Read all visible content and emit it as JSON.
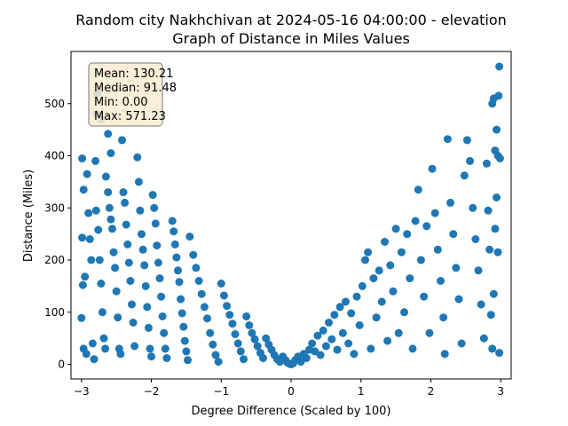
{
  "chart_data": {
    "type": "scatter",
    "title_line1": "Random city Nakhchivan at 2024-05-16 04:00:00  - elevation",
    "title_line2": "Graph of Distance in Miles Values",
    "xlabel": "Degree Difference (Scaled by 100)",
    "ylabel": "Distance (Miles)",
    "xlim": [
      -3.15,
      3.15
    ],
    "ylim": [
      -28,
      600
    ],
    "x_ticks": [
      -3,
      -2,
      -1,
      0,
      1,
      2,
      3
    ],
    "y_ticks": [
      0,
      100,
      200,
      300,
      400,
      500
    ],
    "grid": false,
    "color": "#1f77b4",
    "stats": {
      "mean": "Mean: 130.21",
      "median": "Median: 91.48",
      "min": "Min: 0.00",
      "max": "Max: 571.23"
    },
    "points": [
      [
        -2.99,
        395
      ],
      [
        -2.97,
        335
      ],
      [
        -2.99,
        243
      ],
      [
        -2.95,
        168
      ],
      [
        -2.98,
        152
      ],
      [
        -3.0,
        89
      ],
      [
        -2.97,
        30
      ],
      [
        -2.93,
        20
      ],
      [
        -2.92,
        365
      ],
      [
        -2.9,
        290
      ],
      [
        -2.88,
        240
      ],
      [
        -2.86,
        200
      ],
      [
        -2.84,
        40
      ],
      [
        -2.82,
        10
      ],
      [
        -2.8,
        390
      ],
      [
        -2.78,
        480
      ],
      [
        -2.77,
        520
      ],
      [
        -2.79,
        295
      ],
      [
        -2.76,
        258
      ],
      [
        -2.74,
        200
      ],
      [
        -2.72,
        155
      ],
      [
        -2.7,
        100
      ],
      [
        -2.68,
        50
      ],
      [
        -2.66,
        30
      ],
      [
        -2.72,
        470
      ],
      [
        -2.65,
        360
      ],
      [
        -2.62,
        330
      ],
      [
        -2.6,
        300
      ],
      [
        -2.58,
        278
      ],
      [
        -2.56,
        260
      ],
      [
        -2.54,
        215
      ],
      [
        -2.52,
        185
      ],
      [
        -2.5,
        140
      ],
      [
        -2.48,
        90
      ],
      [
        -2.46,
        30
      ],
      [
        -2.44,
        20
      ],
      [
        -2.62,
        442
      ],
      [
        -2.58,
        405
      ],
      [
        -2.42,
        430
      ],
      [
        -2.4,
        330
      ],
      [
        -2.38,
        310
      ],
      [
        -2.36,
        268
      ],
      [
        -2.34,
        230
      ],
      [
        -2.32,
        195
      ],
      [
        -2.3,
        160
      ],
      [
        -2.28,
        115
      ],
      [
        -2.26,
        80
      ],
      [
        -2.24,
        35
      ],
      [
        -2.2,
        397
      ],
      [
        -2.18,
        350
      ],
      [
        -2.16,
        295
      ],
      [
        -2.14,
        250
      ],
      [
        -2.12,
        220
      ],
      [
        -2.1,
        190
      ],
      [
        -2.08,
        150
      ],
      [
        -2.06,
        110
      ],
      [
        -2.04,
        70
      ],
      [
        -2.02,
        30
      ],
      [
        -2.0,
        15
      ],
      [
        -1.98,
        325
      ],
      [
        -1.96,
        300
      ],
      [
        -1.94,
        270
      ],
      [
        -1.92,
        228
      ],
      [
        -1.9,
        195
      ],
      [
        -1.88,
        165
      ],
      [
        -1.86,
        130
      ],
      [
        -1.84,
        92
      ],
      [
        -1.82,
        60
      ],
      [
        -1.8,
        30
      ],
      [
        -1.78,
        12
      ],
      [
        -1.7,
        275
      ],
      [
        -1.68,
        255
      ],
      [
        -1.66,
        230
      ],
      [
        -1.64,
        205
      ],
      [
        -1.62,
        180
      ],
      [
        -1.6,
        158
      ],
      [
        -1.58,
        125
      ],
      [
        -1.56,
        98
      ],
      [
        -1.54,
        72
      ],
      [
        -1.52,
        45
      ],
      [
        -1.5,
        25
      ],
      [
        -1.48,
        8
      ],
      [
        -1.45,
        245
      ],
      [
        -1.4,
        210
      ],
      [
        -1.36,
        185
      ],
      [
        -1.32,
        160
      ],
      [
        -1.28,
        135
      ],
      [
        -1.24,
        110
      ],
      [
        -1.2,
        88
      ],
      [
        -1.16,
        60
      ],
      [
        -1.12,
        38
      ],
      [
        -1.08,
        18
      ],
      [
        -1.04,
        5
      ],
      [
        -1.0,
        155
      ],
      [
        -0.96,
        132
      ],
      [
        -0.92,
        112
      ],
      [
        -0.88,
        95
      ],
      [
        -0.84,
        78
      ],
      [
        -0.8,
        58
      ],
      [
        -0.76,
        40
      ],
      [
        -0.72,
        25
      ],
      [
        -0.68,
        10
      ],
      [
        -0.64,
        92
      ],
      [
        -0.6,
        75
      ],
      [
        -0.56,
        60
      ],
      [
        -0.52,
        48
      ],
      [
        -0.48,
        35
      ],
      [
        -0.44,
        22
      ],
      [
        -0.4,
        12
      ],
      [
        -0.36,
        50
      ],
      [
        -0.32,
        38
      ],
      [
        -0.28,
        28
      ],
      [
        -0.24,
        18
      ],
      [
        -0.2,
        10
      ],
      [
        -0.16,
        5
      ],
      [
        -0.12,
        15
      ],
      [
        -0.08,
        8
      ],
      [
        -0.05,
        3
      ],
      [
        -0.02,
        1
      ],
      [
        0.0,
        0
      ],
      [
        0.03,
        2
      ],
      [
        0.06,
        8
      ],
      [
        0.1,
        15
      ],
      [
        0.14,
        5
      ],
      [
        0.18,
        20
      ],
      [
        0.22,
        12
      ],
      [
        0.26,
        28
      ],
      [
        0.3,
        40
      ],
      [
        0.34,
        25
      ],
      [
        0.38,
        55
      ],
      [
        0.42,
        18
      ],
      [
        0.46,
        65
      ],
      [
        0.5,
        35
      ],
      [
        0.54,
        80
      ],
      [
        0.58,
        48
      ],
      [
        0.62,
        95
      ],
      [
        0.66,
        28
      ],
      [
        0.7,
        110
      ],
      [
        0.74,
        60
      ],
      [
        0.78,
        120
      ],
      [
        0.82,
        40
      ],
      [
        0.86,
        98
      ],
      [
        0.9,
        20
      ],
      [
        0.94,
        130
      ],
      [
        0.98,
        75
      ],
      [
        1.02,
        150
      ],
      [
        1.06,
        200
      ],
      [
        1.1,
        215
      ],
      [
        1.14,
        30
      ],
      [
        1.18,
        165
      ],
      [
        1.22,
        90
      ],
      [
        1.26,
        180
      ],
      [
        1.3,
        120
      ],
      [
        1.34,
        235
      ],
      [
        1.38,
        45
      ],
      [
        1.42,
        190
      ],
      [
        1.46,
        140
      ],
      [
        1.5,
        260
      ],
      [
        1.54,
        60
      ],
      [
        1.58,
        215
      ],
      [
        1.62,
        100
      ],
      [
        1.66,
        250
      ],
      [
        1.7,
        165
      ],
      [
        1.74,
        30
      ],
      [
        1.78,
        275
      ],
      [
        1.82,
        335
      ],
      [
        1.86,
        200
      ],
      [
        1.9,
        130
      ],
      [
        1.94,
        265
      ],
      [
        1.98,
        60
      ],
      [
        2.02,
        375
      ],
      [
        2.06,
        290
      ],
      [
        2.1,
        220
      ],
      [
        2.14,
        160
      ],
      [
        2.18,
        90
      ],
      [
        2.2,
        20
      ],
      [
        2.24,
        432
      ],
      [
        2.28,
        310
      ],
      [
        2.32,
        250
      ],
      [
        2.36,
        185
      ],
      [
        2.4,
        125
      ],
      [
        2.44,
        40
      ],
      [
        2.48,
        362
      ],
      [
        2.52,
        430
      ],
      [
        2.56,
        390
      ],
      [
        2.6,
        300
      ],
      [
        2.64,
        240
      ],
      [
        2.68,
        180
      ],
      [
        2.72,
        115
      ],
      [
        2.76,
        50
      ],
      [
        2.8,
        385
      ],
      [
        2.82,
        295
      ],
      [
        2.84,
        220
      ],
      [
        2.86,
        95
      ],
      [
        2.88,
        500
      ],
      [
        2.9,
        510
      ],
      [
        2.92,
        410
      ],
      [
        2.94,
        450
      ],
      [
        2.96,
        400
      ],
      [
        2.97,
        515
      ],
      [
        2.98,
        571
      ],
      [
        2.99,
        395
      ],
      [
        2.96,
        215
      ],
      [
        2.98,
        22
      ],
      [
        2.94,
        320
      ],
      [
        2.92,
        260
      ],
      [
        2.9,
        135
      ],
      [
        2.88,
        30
      ]
    ]
  }
}
